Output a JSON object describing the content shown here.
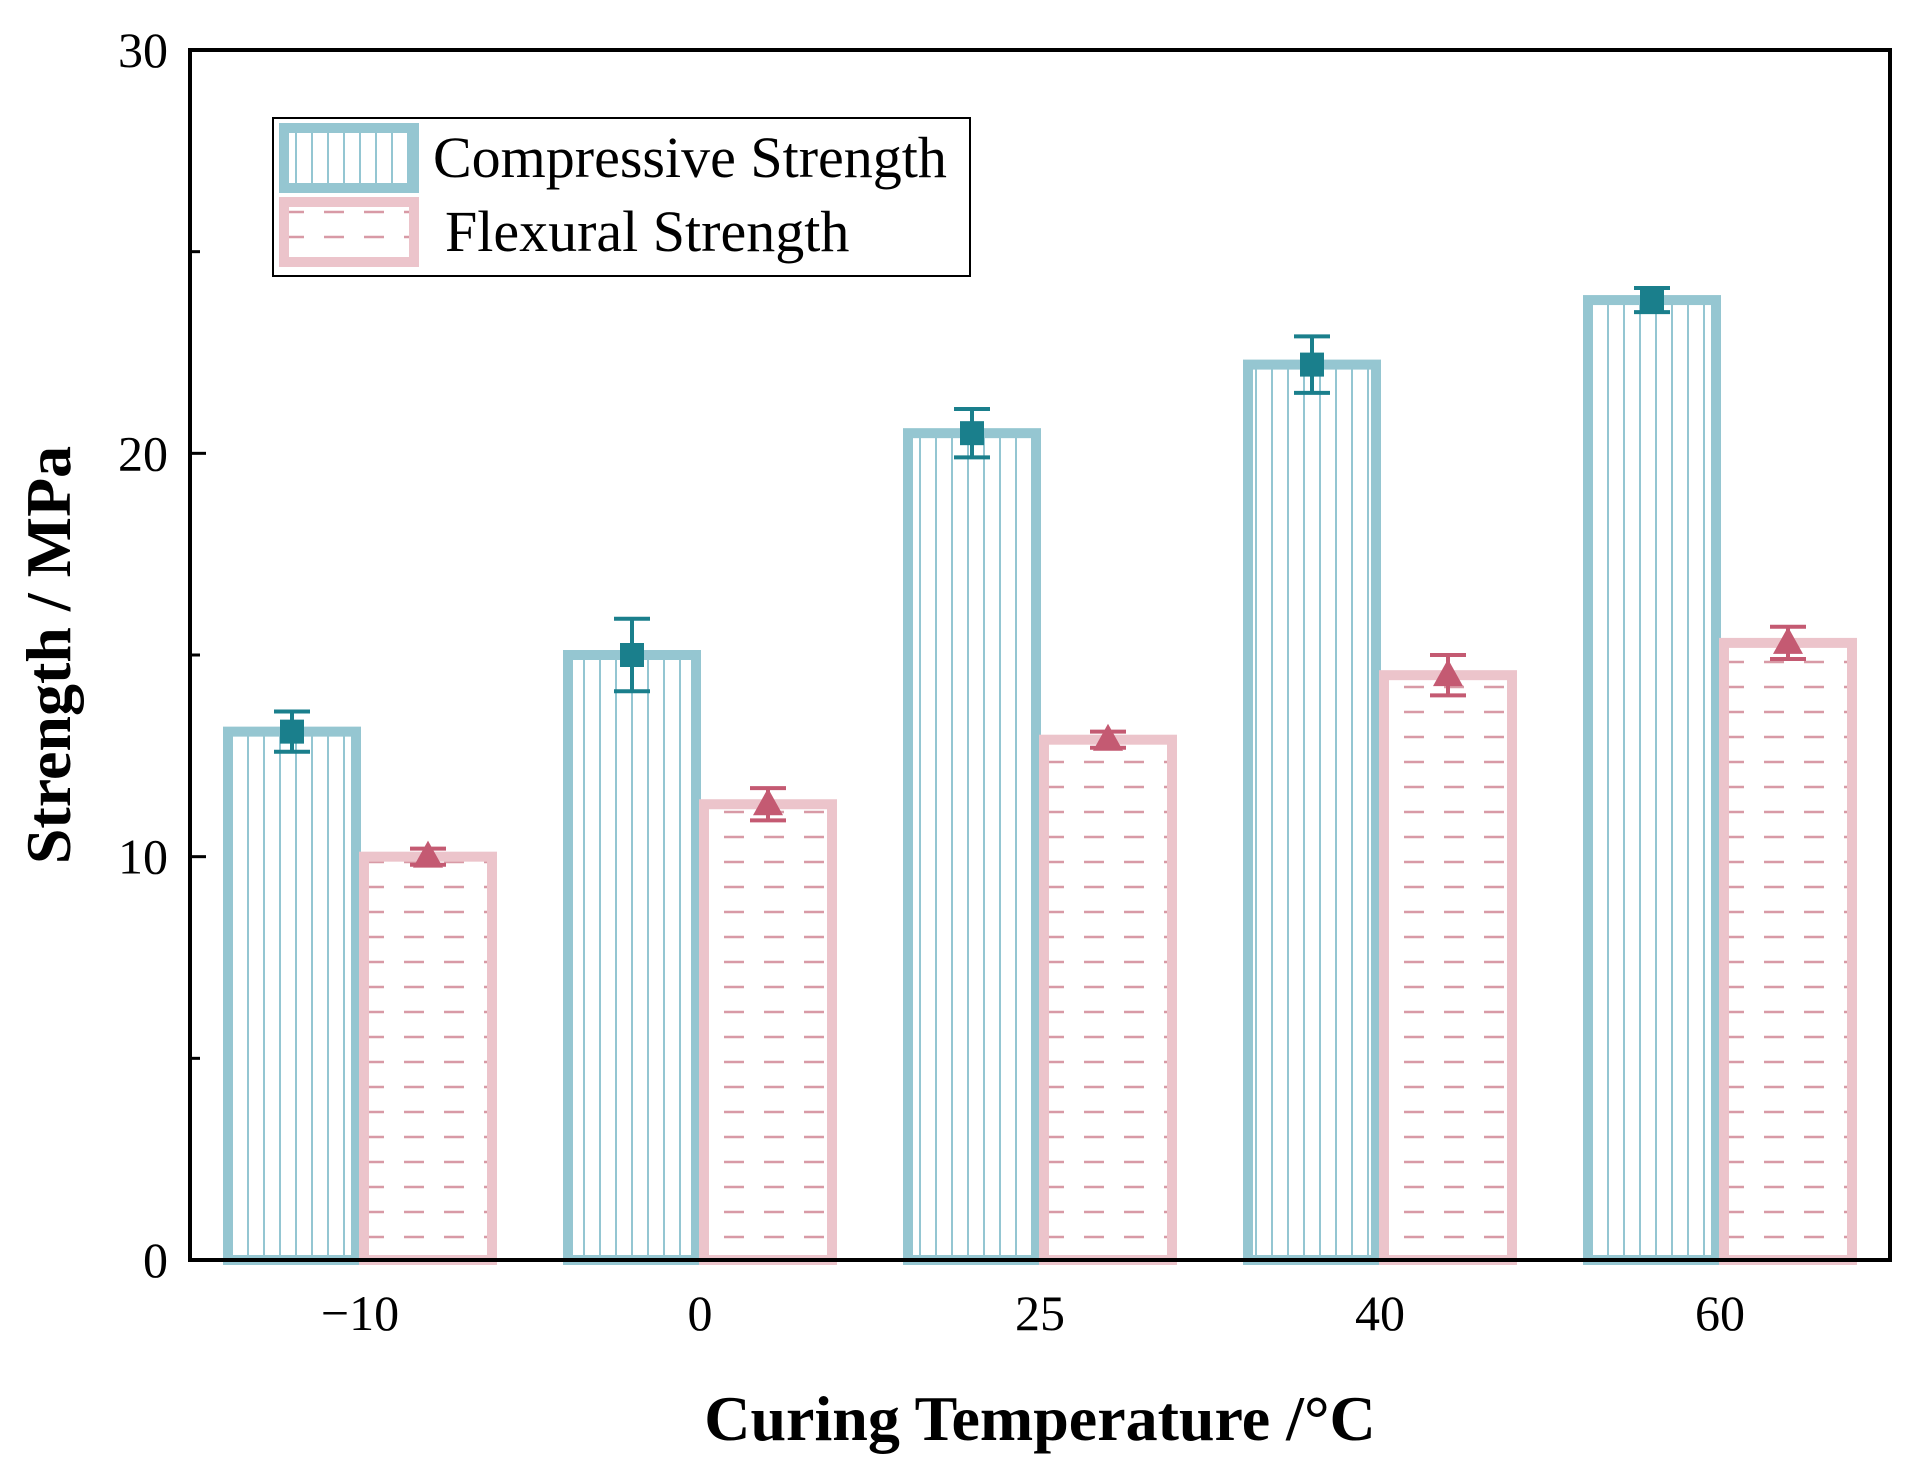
{
  "chart_data": {
    "type": "bar",
    "title": "",
    "xlabel": "Curing Temperature /°C",
    "ylabel": "Strength / MPa",
    "categories": [
      "−10",
      "0",
      "25",
      "40",
      "60"
    ],
    "ylim": [
      0,
      30
    ],
    "yticks": [
      "0",
      "10",
      "20",
      "30"
    ],
    "grid": false,
    "legend_position": "top-left",
    "series": [
      {
        "name": "Compressive Strength",
        "values": [
          13.1,
          15.0,
          20.5,
          22.2,
          23.8
        ],
        "errors": [
          0.5,
          0.9,
          0.6,
          0.7,
          0.3
        ],
        "color": "#95c6d1",
        "marker_color": "#1a7f8c",
        "marker": "square"
      },
      {
        "name": "Flexural Strength",
        "values": [
          10.0,
          11.3,
          12.9,
          14.5,
          15.3
        ],
        "errors": [
          0.2,
          0.4,
          0.2,
          0.5,
          0.4
        ],
        "color": "#ecc4cb",
        "marker_color": "#c45a72",
        "marker": "triangle"
      }
    ]
  }
}
